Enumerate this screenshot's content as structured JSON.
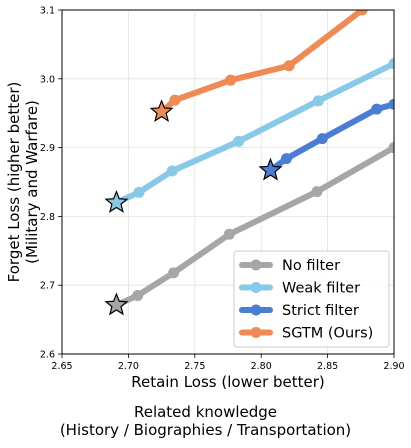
{
  "chart_data": {
    "type": "line",
    "title": "",
    "xlabel": "Retain Loss (lower better)",
    "ylabel_line1": "Forget Loss (higher better)",
    "ylabel_line2": "(Military and Warfare)",
    "xlim": [
      2.65,
      2.9
    ],
    "ylim": [
      2.6,
      3.1
    ],
    "xticks": [
      "2.65",
      "2.70",
      "2.75",
      "2.80",
      "2.85",
      "2.90"
    ],
    "yticks": [
      "2.6",
      "2.7",
      "2.8",
      "2.9",
      "3.0",
      "3.1"
    ],
    "grid": true,
    "legend_position": "lower-right",
    "series": [
      {
        "name": "No filter",
        "color": "#a6a6a6",
        "star": [
          2.691,
          2.671
        ],
        "points": [
          [
            2.707,
            2.685
          ],
          [
            2.734,
            2.718
          ],
          [
            2.776,
            2.774
          ],
          [
            2.842,
            2.836
          ],
          [
            2.9,
            2.9
          ]
        ]
      },
      {
        "name": "Weak filter",
        "color": "#87c9e6",
        "star": [
          2.691,
          2.82
        ],
        "points": [
          [
            2.708,
            2.835
          ],
          [
            2.733,
            2.866
          ],
          [
            2.783,
            2.909
          ],
          [
            2.843,
            2.968
          ],
          [
            2.9,
            3.022
          ]
        ]
      },
      {
        "name": "Strict filter",
        "color": "#4a7ed4",
        "star": [
          2.807,
          2.867
        ],
        "points": [
          [
            2.819,
            2.884
          ],
          [
            2.846,
            2.913
          ],
          [
            2.887,
            2.956
          ],
          [
            2.9,
            2.963
          ]
        ]
      },
      {
        "name": "SGTM (Ours)",
        "color": "#ef8a55",
        "star": [
          2.725,
          2.952
        ],
        "points": [
          [
            2.735,
            2.969
          ],
          [
            2.777,
            2.998
          ],
          [
            2.821,
            3.019
          ],
          [
            2.876,
            3.1
          ]
        ]
      }
    ]
  },
  "caption": {
    "line1": "Related knowledge",
    "line2": "(History / Biographies / Transportation)"
  }
}
